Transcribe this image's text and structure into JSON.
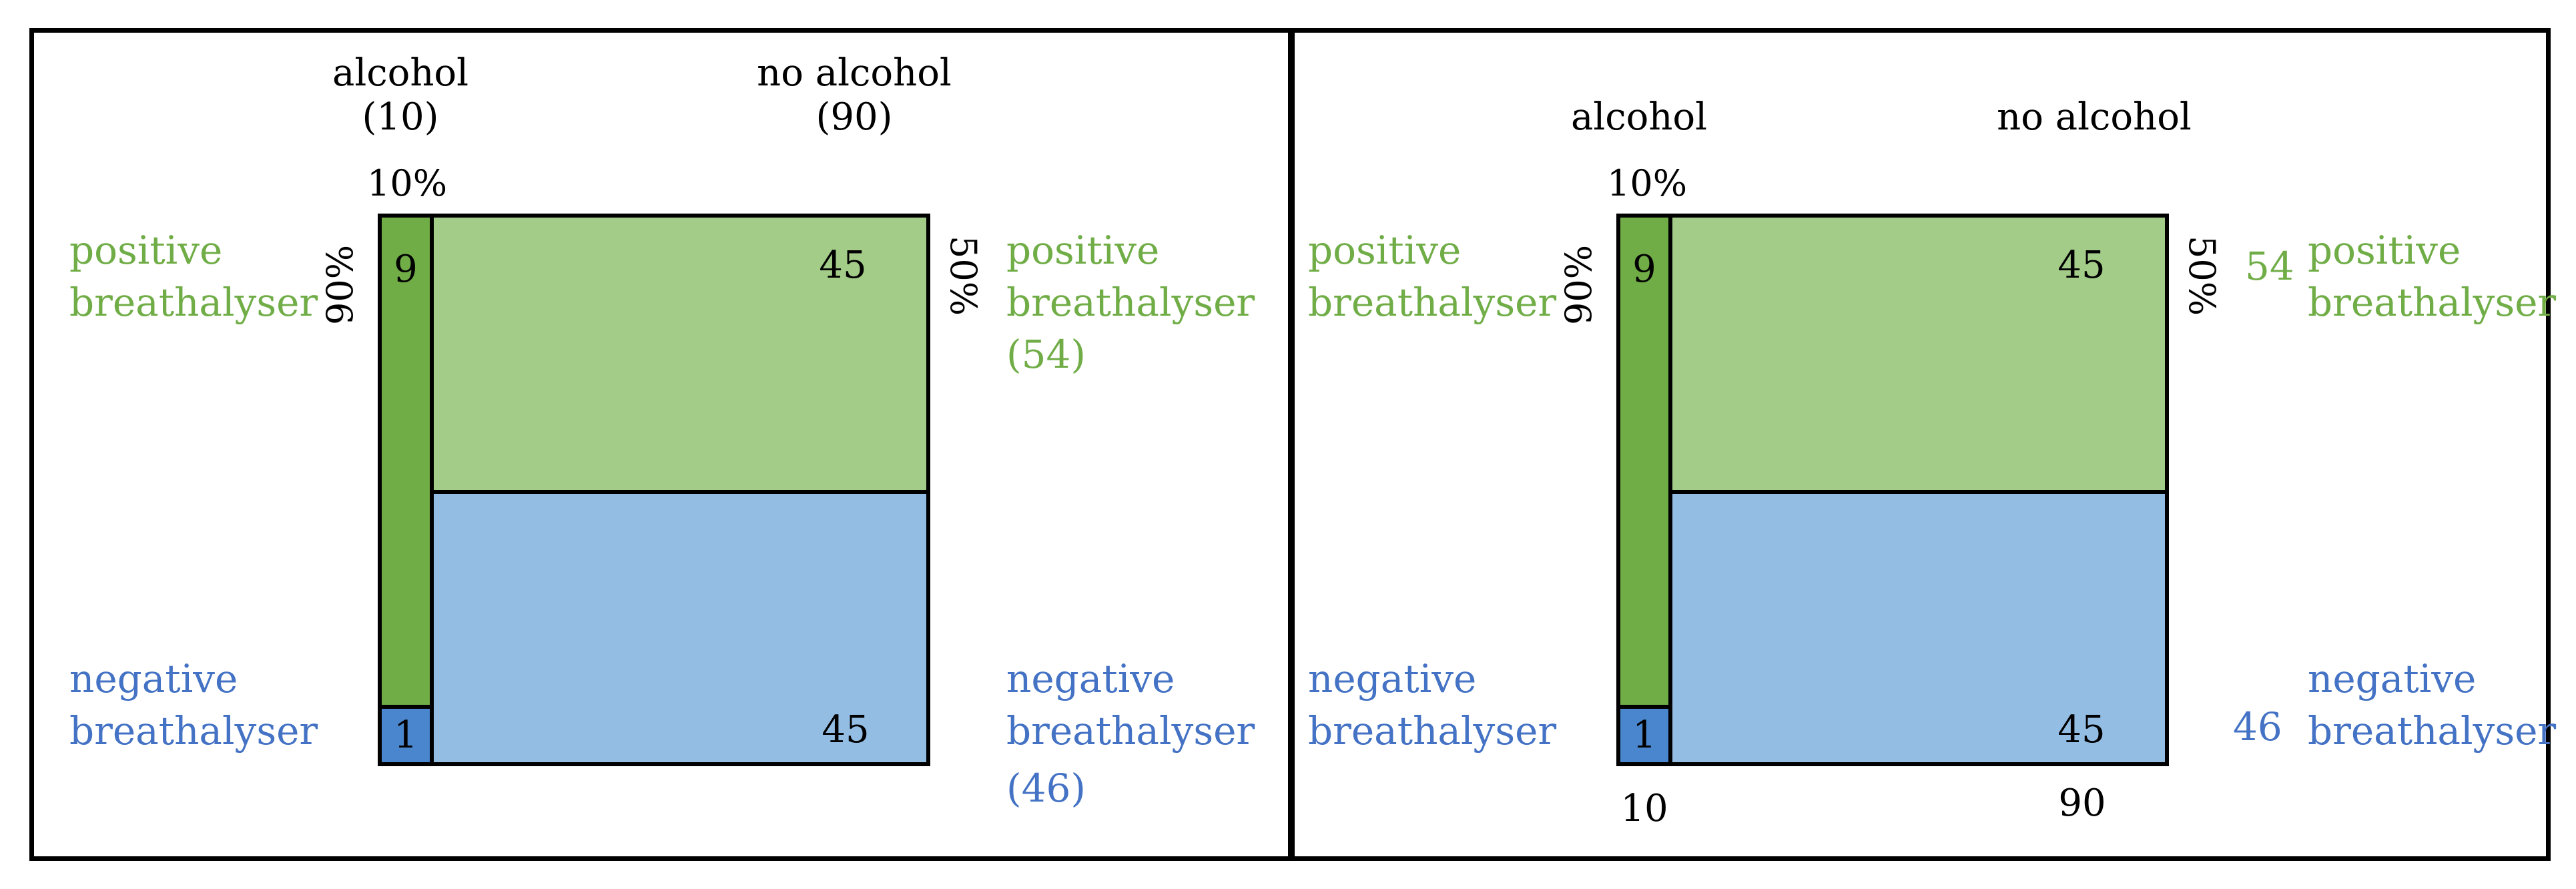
{
  "colors": {
    "alcohol_positive": "#70ad47",
    "no_alcohol_positive": "#a2cc87",
    "alcohol_negative": "#4a86cd",
    "no_alcohol_negative": "#94bde4",
    "positive_text": "#70ad47",
    "negative_text": "#4472c4"
  },
  "chart_data": [
    {
      "type": "mosaic",
      "title": "",
      "column_headers": [
        "alcohol",
        "no alcohol"
      ],
      "column_totals_labels": [
        "(10)",
        "(90)"
      ],
      "column_totals": [
        10,
        90
      ],
      "alcohol_share_label": "10%",
      "rows": [
        "positive breathalyser",
        "negative breathalyser"
      ],
      "cells": {
        "alcohol": [
          9,
          1
        ],
        "no_alcohol": [
          45,
          45
        ]
      },
      "alcohol_positive_rate_label": "90%",
      "no_alcohol_positive_rate_label": "50%",
      "row_total_labels": [
        "(54)",
        "(46)"
      ],
      "row_totals": [
        54,
        46
      ],
      "left_labels": {
        "positive": [
          "positive",
          "breathalyser"
        ],
        "negative": [
          "negative",
          "breathalyser"
        ]
      },
      "right_labels": {
        "positive": [
          "positive",
          "breathalyser"
        ],
        "negative": [
          "negative",
          "breathalyser"
        ]
      },
      "cell_labels": {
        "a_pos": "9",
        "a_neg": "1",
        "n_pos": "45",
        "n_neg": "45"
      }
    },
    {
      "type": "mosaic",
      "title": "",
      "column_headers": [
        "alcohol",
        "no alcohol"
      ],
      "column_totals_labels": [
        "10",
        "90"
      ],
      "column_totals": [
        10,
        90
      ],
      "alcohol_share_label": "10%",
      "rows": [
        "positive breathalyser",
        "negative breathalyser"
      ],
      "cells": {
        "alcohol": [
          9,
          1
        ],
        "no_alcohol": [
          45,
          45
        ]
      },
      "alcohol_positive_rate_label": "90%",
      "no_alcohol_positive_rate_label": "50%",
      "row_total_labels": [
        "54",
        "46"
      ],
      "row_totals": [
        54,
        46
      ],
      "left_labels": {
        "positive": [
          "positive",
          "breathalyser"
        ],
        "negative": [
          "negative",
          "breathalyser"
        ]
      },
      "right_labels": {
        "positive": [
          "positive",
          "breathalyser"
        ],
        "negative": [
          "negative",
          "breathalyser"
        ]
      },
      "cell_labels": {
        "a_pos": "9",
        "a_neg": "1",
        "n_pos": "45",
        "n_neg": "45"
      }
    }
  ]
}
